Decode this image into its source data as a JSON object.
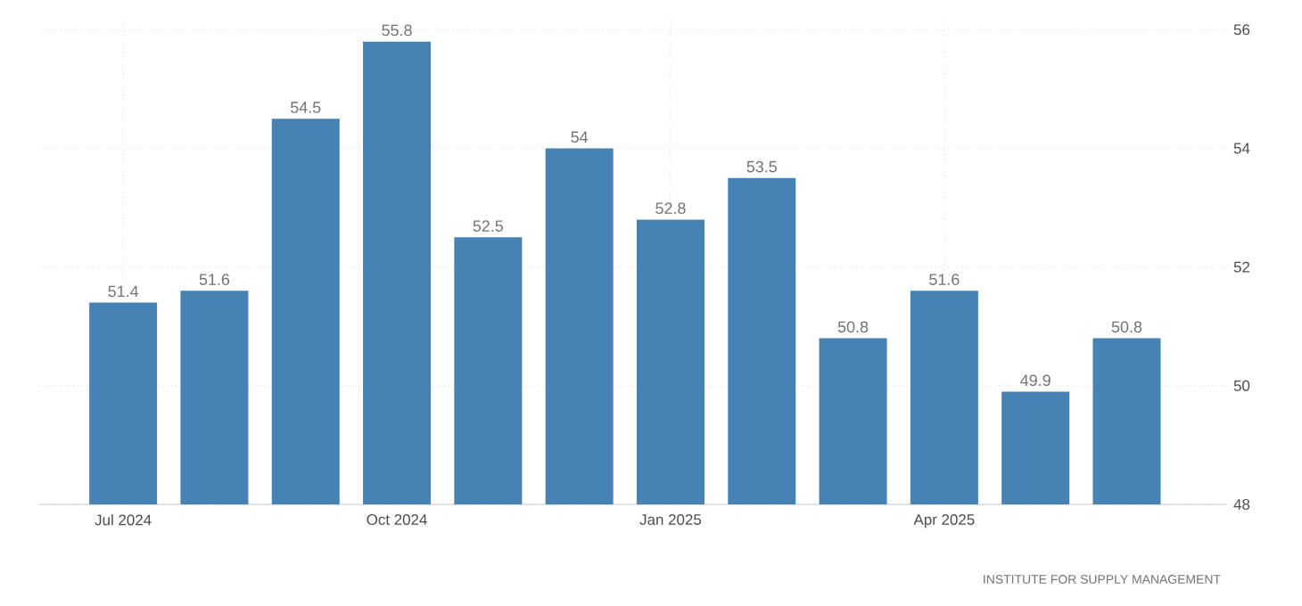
{
  "chart_data": {
    "type": "bar",
    "categories": [
      "Jul 2024",
      null,
      null,
      "Oct 2024",
      null,
      null,
      "Jan 2025",
      null,
      null,
      "Apr 2025",
      null,
      null
    ],
    "values": [
      51.4,
      51.6,
      54.5,
      55.8,
      52.5,
      54,
      52.8,
      53.5,
      50.8,
      51.6,
      49.9,
      50.8
    ],
    "color": "#4682b4",
    "ylim": [
      48,
      56.2
    ],
    "yticks": [
      48,
      50,
      52,
      54,
      56
    ],
    "grid": true,
    "data_labels": true,
    "annotations": [
      "INSTITUTE FOR SUPPLY MANAGEMENT"
    ]
  }
}
